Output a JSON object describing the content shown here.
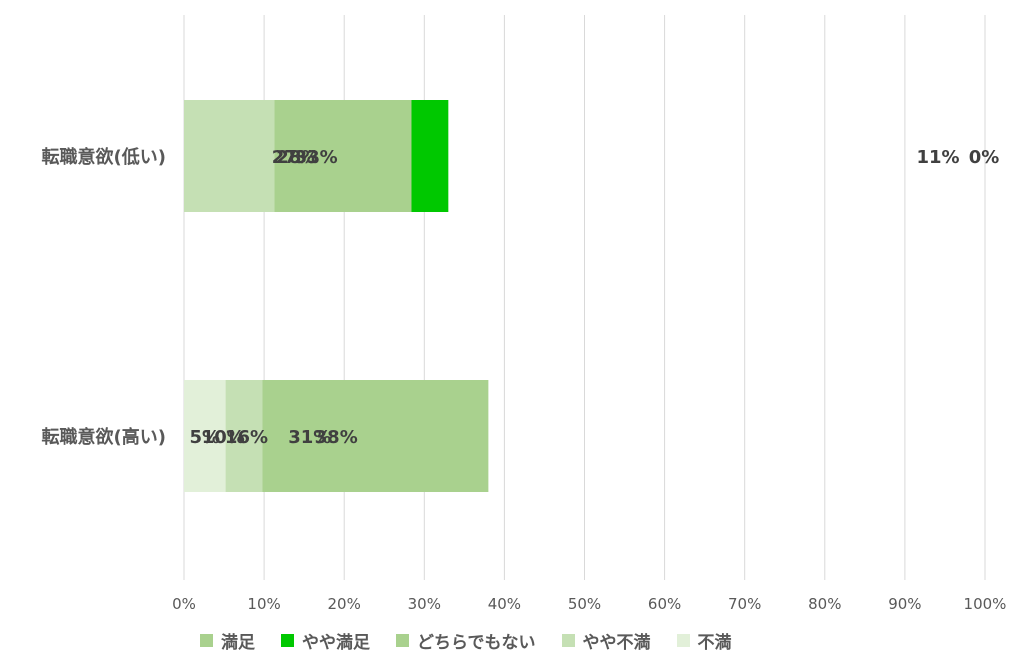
{
  "chart_data": {
    "type": "bar",
    "orientation": "horizontal",
    "stacked": true,
    "categories": [
      "転職意欲(低い)",
      "転職意欲(高い)"
    ],
    "series": [
      {
        "name": "満足",
        "color": "#00C96A",
        "values": [
          27.3,
          15.6
        ],
        "labels": [
          "27%",
          "16%"
        ]
      },
      {
        "name": "やや満足",
        "color": "#00C800",
        "values": [
          33.0,
          31.4
        ],
        "labels": [
          "33%",
          "31%"
        ]
      },
      {
        "name": "どちらでもない",
        "color": "#A9D18E",
        "values": [
          28.4,
          38.0
        ],
        "labels": [
          "28%",
          "38%"
        ]
      },
      {
        "name": "やや不満",
        "color": "#C5E0B4",
        "values": [
          11.3,
          9.8
        ],
        "labels": [
          "11%",
          "10%"
        ]
      },
      {
        "name": "不満",
        "color": "#E2F0D9",
        "values": [
          0,
          5.2
        ],
        "labels": [
          "0%",
          "5%"
        ]
      }
    ],
    "xlim": [
      0,
      100
    ],
    "x_ticks": [
      "0%",
      "10%",
      "20%",
      "30%",
      "40%",
      "50%",
      "60%",
      "70%",
      "80%",
      "90%",
      "100%"
    ],
    "grid": "vertical",
    "legend_position": "bottom",
    "legend_swatch_colors": [
      "#A9D18E",
      "#00C800",
      "#A9D18E",
      "#C5E0B4",
      "#E2F0D9"
    ]
  }
}
